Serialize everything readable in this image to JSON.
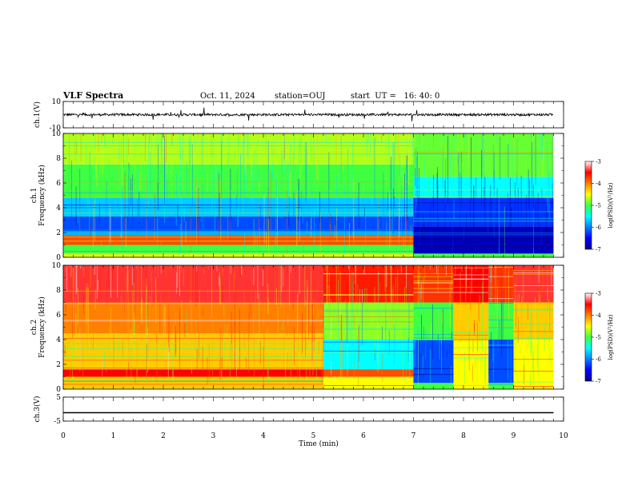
{
  "header": {
    "title": "VLF Spectra",
    "date": "Oct. 11, 2024",
    "station": "station=OUJ",
    "start_ut": "start  UT =   16: 40: 0"
  },
  "chart_data": [
    {
      "type": "line",
      "panel": "ch1-waveform",
      "ylabel": "ch.1(V)",
      "ylim": [
        -10,
        10
      ],
      "yticks": [
        "10",
        "-10"
      ],
      "xlim": [
        0,
        10
      ],
      "description": "noisy waveform around ~0 V with small spikes",
      "color": "#000000"
    },
    {
      "type": "heatmap",
      "panel": "ch1-spectrogram",
      "ylabel": "ch.1\nFrequency (kHz)",
      "ylim": [
        0,
        10
      ],
      "yticks": [
        "0",
        "2",
        "4",
        "6",
        "8",
        "10"
      ],
      "xlim": [
        0,
        10
      ],
      "data_end_min": 9.8,
      "colorbar": {
        "label": "log(PSD)(V²/Hz)",
        "ticks": [
          "-3",
          "-4",
          "-5",
          "-6",
          "-7"
        ],
        "range": [
          -7,
          -3
        ]
      },
      "segments": [
        {
          "t0": 0.0,
          "t1": 7.0,
          "bands": [
            [
              0.0,
              0.3,
              -4.6
            ],
            [
              0.3,
              1.0,
              -5.0
            ],
            [
              1.0,
              1.8,
              -3.8
            ],
            [
              1.8,
              2.2,
              -5.8
            ],
            [
              2.2,
              3.3,
              -6.2
            ],
            [
              3.3,
              4.8,
              -5.7
            ],
            [
              4.8,
              7.5,
              -5.0
            ],
            [
              7.5,
              10.0,
              -4.7
            ]
          ]
        },
        {
          "t0": 7.0,
          "t1": 9.8,
          "bands": [
            [
              0.0,
              0.3,
              -5.0
            ],
            [
              0.3,
              2.5,
              -6.8
            ],
            [
              2.5,
              4.8,
              -6.3
            ],
            [
              4.8,
              6.5,
              -5.5
            ],
            [
              6.5,
              10.0,
              -4.9
            ]
          ]
        }
      ]
    },
    {
      "type": "heatmap",
      "panel": "ch2-spectrogram",
      "ylabel": "ch.2\nFrequency (kHz)",
      "ylim": [
        0,
        10
      ],
      "yticks": [
        "0",
        "2",
        "4",
        "6",
        "8",
        "10"
      ],
      "xlim": [
        0,
        10
      ],
      "data_end_min": 9.8,
      "colorbar": {
        "label": "log(PSD)(V²/Hz)",
        "ticks": [
          "-3",
          "-4",
          "-5",
          "-6",
          "-7"
        ],
        "range": [
          -7,
          -3
        ]
      },
      "segments": [
        {
          "t0": 0.0,
          "t1": 5.2,
          "bands": [
            [
              0.0,
              1.0,
              -4.3
            ],
            [
              1.0,
              1.6,
              -3.5
            ],
            [
              1.6,
              4.5,
              -4.3
            ],
            [
              4.5,
              7.0,
              -4.0
            ],
            [
              7.0,
              10.0,
              -3.4
            ]
          ]
        },
        {
          "t0": 5.2,
          "t1": 7.0,
          "bands": [
            [
              0.0,
              1.0,
              -4.5
            ],
            [
              1.0,
              1.6,
              -3.8
            ],
            [
              1.6,
              4.0,
              -5.5
            ],
            [
              4.0,
              7.0,
              -4.8
            ],
            [
              7.0,
              10.0,
              -3.6
            ]
          ]
        },
        {
          "t0": 7.0,
          "t1": 7.8,
          "bands": [
            [
              0.0,
              0.5,
              -5.0
            ],
            [
              0.5,
              4.0,
              -6.2
            ],
            [
              4.0,
              7.0,
              -5.0
            ],
            [
              7.0,
              10.0,
              -3.7
            ]
          ]
        },
        {
          "t0": 7.8,
          "t1": 8.5,
          "bands": [
            [
              0.0,
              4.0,
              -4.5
            ],
            [
              4.0,
              7.0,
              -4.3
            ],
            [
              7.0,
              10.0,
              -3.5
            ]
          ]
        },
        {
          "t0": 8.5,
          "t1": 9.0,
          "bands": [
            [
              0.0,
              0.5,
              -5.0
            ],
            [
              0.5,
              4.0,
              -6.2
            ],
            [
              4.0,
              7.0,
              -5.0
            ],
            [
              7.0,
              10.0,
              -3.7
            ]
          ]
        },
        {
          "t0": 9.0,
          "t1": 9.8,
          "bands": [
            [
              0.0,
              4.0,
              -4.5
            ],
            [
              4.0,
              7.0,
              -4.3
            ],
            [
              7.0,
              10.0,
              -3.4
            ]
          ]
        }
      ]
    },
    {
      "type": "line",
      "panel": "ch3-waveform",
      "ylabel": "ch.3(V)",
      "ylim": [
        -5,
        5
      ],
      "yticks": [
        "5",
        "-5"
      ],
      "xlim": [
        0,
        10
      ],
      "constant_value": -1.5,
      "color": "#000000"
    }
  ],
  "xaxis": {
    "label": "Time (min)",
    "ticks": [
      "0",
      "1",
      "2",
      "3",
      "4",
      "5",
      "6",
      "7",
      "8",
      "9",
      "10"
    ]
  }
}
